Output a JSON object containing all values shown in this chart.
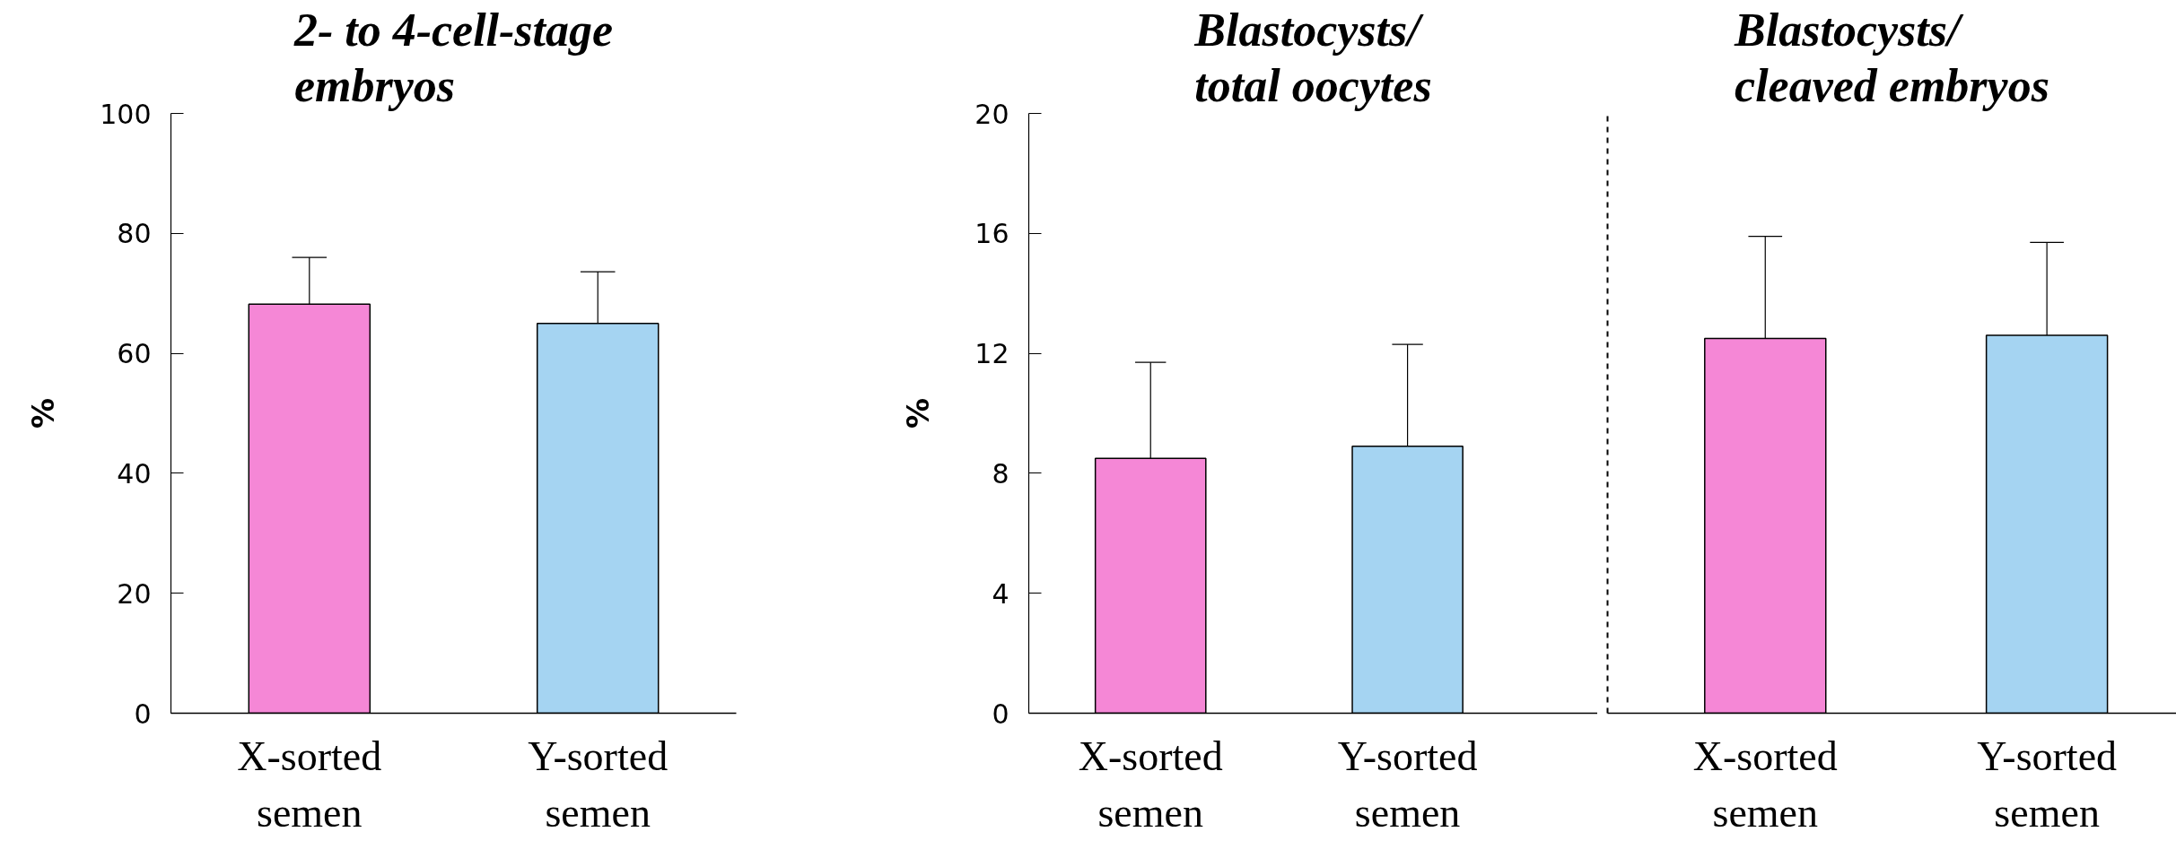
{
  "chart_data": [
    {
      "type": "bar",
      "title": "2- to 4-cell-stage embryos",
      "ylabel": "%",
      "categories": [
        "X-sorted semen",
        "Y-sorted semen"
      ],
      "values": [
        68.2,
        65.0
      ],
      "colors": [
        "#f587d6",
        "#a5d4f2"
      ],
      "errors": [
        [
          68.2,
          76.0
        ],
        [
          65.0,
          73.6
        ]
      ],
      "ylim": [
        0,
        100
      ],
      "yticks": [
        0,
        20,
        40,
        60,
        80,
        100
      ],
      "grid": false
    },
    {
      "type": "bar",
      "title": "Blastocysts/ total oocytes",
      "ylabel": "%",
      "categories": [
        "X-sorted semen",
        "Y-sorted semen"
      ],
      "values": [
        8.5,
        8.9
      ],
      "colors": [
        "#f587d6",
        "#a5d4f2"
      ],
      "errors": [
        [
          8.5,
          11.7
        ],
        [
          8.9,
          12.3
        ]
      ],
      "ylim": [
        0,
        20
      ],
      "yticks": [
        0,
        4,
        8,
        12,
        16,
        20
      ],
      "grid": false
    },
    {
      "type": "bar",
      "title": "Blastocysts/ cleaved embryos",
      "categories": [
        "X-sorted semen",
        "Y-sorted semen"
      ],
      "values": [
        12.5,
        12.6
      ],
      "colors": [
        "#f587d6",
        "#a5d4f2"
      ],
      "errors": [
        [
          12.5,
          15.9
        ],
        [
          12.6,
          15.7
        ]
      ],
      "ylim": [
        0,
        20
      ],
      "tick_labels": "x",
      "grid": false
    }
  ]
}
